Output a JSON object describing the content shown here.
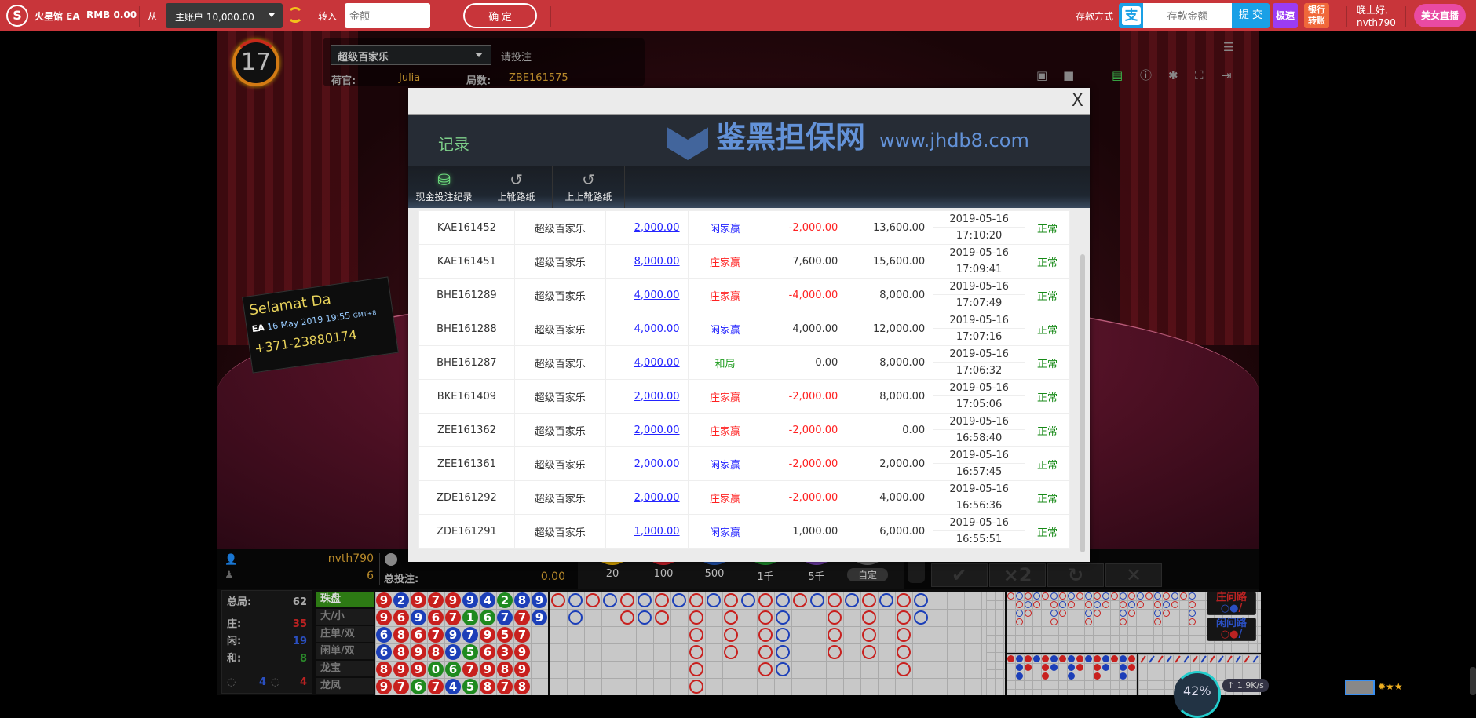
{
  "topbar": {
    "brand": "火星馆 EA",
    "balance": "RMB 0.00",
    "from_label": "从",
    "account_select": "主账户 10,000.00",
    "to_label": "转入",
    "amount_placeholder": "金额",
    "confirm": "确 定",
    "deposit_method": "存款方式",
    "alipay_icon": "支",
    "deposit_placeholder": "存款金额",
    "submit": "提 交",
    "fast": "极速",
    "bank_transfer": "银行转账",
    "greeting": "晚上好,",
    "username": "nvth790",
    "live": "美女直播"
  },
  "game": {
    "countdown": "17",
    "game_select": "超级百家乐",
    "status": "请投注",
    "dealer_label": "荷官:",
    "dealer": "Julia",
    "round_label": "局数:",
    "round": "ZBE161575",
    "sign": {
      "title": "Selamat Da",
      "date": "16 May 2019",
      "time": "19:55",
      "tz": "GMT+8",
      "phone": "+371-23880174",
      "brand": "EA"
    },
    "watermark": {
      "text": "鉴黑担保网",
      "url": "www.jhdb8.com"
    }
  },
  "modal": {
    "title": "记录",
    "close": "X",
    "tabs": [
      {
        "label": "现金投注纪录",
        "icon": "coins-icon",
        "active": true
      },
      {
        "label": "上靴路纸",
        "icon": "history-icon"
      },
      {
        "label": "上上靴路纸",
        "icon": "history-icon"
      }
    ],
    "rows": [
      {
        "round": "KAE161452",
        "game": "超级百家乐",
        "bet": "2,000.00",
        "result": "闲家赢",
        "rtype": "player",
        "winloss": "-2,000.00",
        "balance": "13,600.00",
        "date": "2019-05-16",
        "time": "17:10:20",
        "status": "正常"
      },
      {
        "round": "KAE161451",
        "game": "超级百家乐",
        "bet": "8,000.00",
        "result": "庄家赢",
        "rtype": "banker",
        "winloss": "7,600.00",
        "balance": "15,600.00",
        "date": "2019-05-16",
        "time": "17:09:41",
        "status": "正常"
      },
      {
        "round": "BHE161289",
        "game": "超级百家乐",
        "bet": "4,000.00",
        "result": "庄家赢",
        "rtype": "banker",
        "winloss": "-4,000.00",
        "balance": "8,000.00",
        "date": "2019-05-16",
        "time": "17:07:49",
        "status": "正常"
      },
      {
        "round": "BHE161288",
        "game": "超级百家乐",
        "bet": "4,000.00",
        "result": "闲家赢",
        "rtype": "player",
        "winloss": "4,000.00",
        "balance": "12,000.00",
        "date": "2019-05-16",
        "time": "17:07:16",
        "status": "正常"
      },
      {
        "round": "BHE161287",
        "game": "超级百家乐",
        "bet": "4,000.00",
        "result": "和局",
        "rtype": "tie",
        "winloss": "0.00",
        "balance": "8,000.00",
        "date": "2019-05-16",
        "time": "17:06:32",
        "status": "正常"
      },
      {
        "round": "BKE161409",
        "game": "超级百家乐",
        "bet": "2,000.00",
        "result": "庄家赢",
        "rtype": "banker",
        "winloss": "-2,000.00",
        "balance": "8,000.00",
        "date": "2019-05-16",
        "time": "17:05:06",
        "status": "正常"
      },
      {
        "round": "ZEE161362",
        "game": "超级百家乐",
        "bet": "2,000.00",
        "result": "庄家赢",
        "rtype": "banker",
        "winloss": "-2,000.00",
        "balance": "0.00",
        "date": "2019-05-16",
        "time": "16:58:40",
        "status": "正常"
      },
      {
        "round": "ZEE161361",
        "game": "超级百家乐",
        "bet": "2,000.00",
        "result": "闲家赢",
        "rtype": "player",
        "winloss": "-2,000.00",
        "balance": "2,000.00",
        "date": "2019-05-16",
        "time": "16:57:45",
        "status": "正常"
      },
      {
        "round": "ZDE161292",
        "game": "超级百家乐",
        "bet": "2,000.00",
        "result": "庄家赢",
        "rtype": "banker",
        "winloss": "-2,000.00",
        "balance": "4,000.00",
        "date": "2019-05-16",
        "time": "16:56:36",
        "status": "正常"
      },
      {
        "round": "ZDE161291",
        "game": "超级百家乐",
        "bet": "1,000.00",
        "result": "闲家赢",
        "rtype": "player",
        "winloss": "1,000.00",
        "balance": "6,000.00",
        "date": "2019-05-16",
        "time": "16:55:51",
        "status": "正常"
      }
    ]
  },
  "player": {
    "name": "nvth790",
    "seat": "6",
    "total_bet_label": "总投注:",
    "total_bet": "0.00"
  },
  "chips": [
    "20",
    "100",
    "500",
    "1千",
    "5千",
    "自定"
  ],
  "chip_colors": [
    "#d9a400",
    "#c8202a",
    "#1f4fa8",
    "#1c8a2a",
    "#6b3aa0",
    "#666666"
  ],
  "actions": [
    {
      "name": "confirm",
      "glyph": "✔"
    },
    {
      "name": "double",
      "glyph": "×2"
    },
    {
      "name": "rebet",
      "glyph": "↻"
    },
    {
      "name": "cancel",
      "glyph": "✕"
    }
  ],
  "stats": {
    "total_label": "总局:",
    "total": "62",
    "banker_label": "庄:",
    "banker": "35",
    "player_label": "闲:",
    "player": "19",
    "tie_label": "和:",
    "tie": "8",
    "banker_pair": "4",
    "player_pair": "4"
  },
  "road_tabs": [
    "珠盘",
    "大/小",
    "庄单/双",
    "闲单/双",
    "龙宝",
    "龙凤"
  ],
  "bead_plate": [
    [
      "B9",
      "P2",
      "B9",
      "B7",
      "B9",
      "P9",
      "P4",
      "T2",
      "P8",
      "P9"
    ],
    [
      "B9",
      "B6",
      "P9",
      "B6",
      "B7",
      "T1",
      "T6",
      "P7",
      "B7",
      "P9"
    ],
    [
      "P6",
      "B8",
      "B6",
      "B7",
      "P9",
      "P7",
      "B9",
      "B5",
      "B7"
    ],
    [
      "P6",
      "B8",
      "B9",
      "B8",
      "P9",
      "T5",
      "B6",
      "B3",
      "B9"
    ],
    [
      "B8",
      "B9",
      "B9",
      "T0",
      "T6",
      "B7",
      "B9",
      "B8",
      "B9"
    ],
    [
      "B9",
      "B7",
      "T6",
      "B7",
      "P4",
      "T5",
      "B8",
      "B7",
      "B8"
    ]
  ],
  "big_road": [
    "B1",
    "P2",
    "B1",
    "P1",
    "B2",
    "P2",
    "B2",
    "P1",
    "B6",
    "P1",
    "B4",
    "P1",
    "B5",
    "P5",
    "B1",
    "P1",
    "B4",
    "P1",
    "B4",
    "P1",
    "B5",
    "P2"
  ],
  "ask_road": {
    "banker": "庄问路",
    "player": "闲问路"
  },
  "network": {
    "percent": "42%",
    "speed": "1.9K/s"
  },
  "colors": {
    "banker": "#c8201e",
    "player": "#1c3fb8",
    "tie": "#1f8a1f",
    "accent": "#c8353a"
  }
}
